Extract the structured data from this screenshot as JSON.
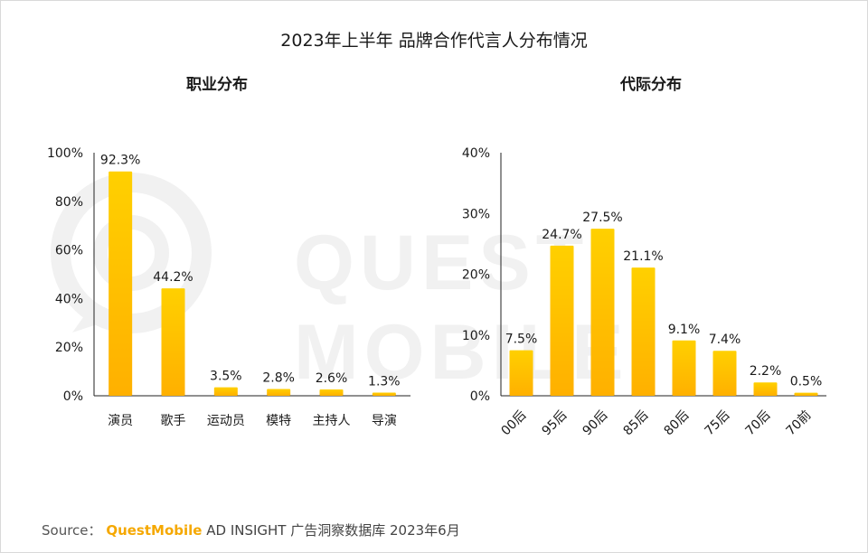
{
  "title": "2023年上半年 品牌合作代言人分布情况",
  "watermark": "QUEST MOBILE",
  "colors": {
    "bar_top": "#FFD000",
    "bar_bottom": "#FFB000",
    "axis": "#222222",
    "text": "#1a1a1a"
  },
  "footer": {
    "source_label": "Source：",
    "brand": "QuestMobile",
    "rest": "AD INSIGHT 广告洞察数据库 2023年6月"
  },
  "chart_data": [
    {
      "type": "bar",
      "subtitle": "职业分布",
      "categories": [
        "演员",
        "歌手",
        "运动员",
        "模特",
        "主持人",
        "导演"
      ],
      "values": [
        92.3,
        44.2,
        3.5,
        2.8,
        2.6,
        1.3
      ],
      "value_labels": [
        "92.3%",
        "44.2%",
        "3.5%",
        "2.8%",
        "2.6%",
        "1.3%"
      ],
      "ylim": [
        0,
        100
      ],
      "yticks": [
        0,
        20,
        40,
        60,
        80,
        100
      ],
      "ytick_labels": [
        "0%",
        "20%",
        "40%",
        "60%",
        "80%",
        "100%"
      ],
      "xlabel": "",
      "ylabel": "",
      "grid": false
    },
    {
      "type": "bar",
      "subtitle": "代际分布",
      "categories": [
        "00后",
        "95后",
        "90后",
        "85后",
        "80后",
        "75后",
        "70后",
        "70前"
      ],
      "values": [
        7.5,
        24.7,
        27.5,
        21.1,
        9.1,
        7.4,
        2.2,
        0.5
      ],
      "value_labels": [
        "7.5%",
        "24.7%",
        "27.5%",
        "21.1%",
        "9.1%",
        "7.4%",
        "2.2%",
        "0.5%"
      ],
      "ylim": [
        0,
        40
      ],
      "yticks": [
        0,
        10,
        20,
        30,
        40
      ],
      "ytick_labels": [
        "0%",
        "10%",
        "20%",
        "30%",
        "40%"
      ],
      "xlabel": "",
      "ylabel": "",
      "grid": false,
      "tick_rotation": "-45deg"
    }
  ]
}
